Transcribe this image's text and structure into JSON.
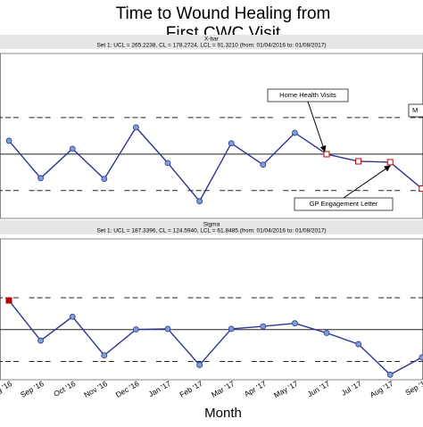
{
  "title": "Time to Wound Healing from First CWC Visit",
  "title_lines": [
    "Time to Wound Healing from",
    "First CWC Visit"
  ],
  "x_label": "Month",
  "chart_data": [
    {
      "type": "line",
      "title": "X-bar",
      "subtitle": "Set 1: UCL = 265.2238, CL = 178.2724, LCL = 91.3210 (from: 01/04/2016 to: 01/08/2017)",
      "ucl": 265.2238,
      "cl": 178.2724,
      "lcl": 91.321,
      "ylim": [
        25,
        418
      ],
      "series": [
        {
          "color": "#2e3592",
          "values": [
            210,
            121,
            191,
            119,
            242,
            157,
            66,
            204,
            153,
            229,
            178,
            161,
            159,
            96
          ],
          "markers": [
            "circle",
            "circle",
            "circle",
            "circle",
            "circle",
            "circle",
            "circle",
            "circle",
            "circle",
            "circle",
            "square",
            "square",
            "square",
            "square"
          ],
          "marker_fills": [
            "#7c9fd6",
            "#7c9fd6",
            "#7c9fd6",
            "#7c9fd6",
            "#7c9fd6",
            "#7c9fd6",
            "#7c9fd6",
            "#7c9fd6",
            "#7c9fd6",
            "#7c9fd6",
            "#ffffff",
            "#ffffff",
            "#ffffff",
            "#ffffff"
          ]
        }
      ],
      "annotations": [
        "Home Health Visits",
        "GP Engagement Letter",
        "M"
      ]
    },
    {
      "type": "line",
      "title": "Sigma",
      "subtitle": "Set 1: UCL = 187.3396, CL = 124.5940, LCL = 61.8485 (from: 01/04/2016 to: 01/08/2017)",
      "ucl": 187.3396,
      "cl": 124.594,
      "lcl": 61.8485,
      "ylim": [
        26,
        303
      ],
      "categories": [
        "g '16",
        "Sep '16",
        "Oct '16",
        "Nov '16",
        "Dec '16",
        "Jan '17",
        "Feb '17",
        "Mar '17",
        "Apr '17",
        "May '17",
        "Jun '17",
        "Jul '17",
        "Aug '17",
        "Sep '1"
      ],
      "series": [
        {
          "color": "#2e3592",
          "values": [
            182,
            103,
            150,
            74,
            125,
            126,
            55,
            126,
            131,
            137,
            118,
            96,
            36,
            70
          ],
          "markers": [
            "square",
            "circle",
            "circle",
            "circle",
            "circle",
            "circle",
            "circle",
            "circle",
            "circle",
            "circle",
            "circle",
            "circle",
            "circle",
            "circle"
          ],
          "marker_fills": [
            "#b00000",
            "#7c9fd6",
            "#7c9fd6",
            "#7c9fd6",
            "#7c9fd6",
            "#7c9fd6",
            "#7c9fd6",
            "#7c9fd6",
            "#7c9fd6",
            "#7c9fd6",
            "#7c9fd6",
            "#7c9fd6",
            "#7c9fd6",
            "#7c9fd6"
          ]
        }
      ]
    }
  ]
}
